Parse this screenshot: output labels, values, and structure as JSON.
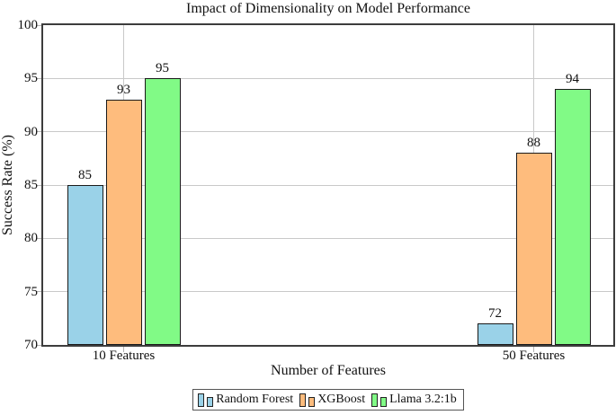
{
  "chart_data": {
    "type": "bar",
    "title": "Impact of Dimensionality on Model Performance",
    "xlabel": "Number of Features",
    "ylabel": "Success Rate (%)",
    "categories": [
      "10 Features",
      "50 Features"
    ],
    "series": [
      {
        "name": "Random Forest",
        "color": "#9AD2E8",
        "values": [
          85,
          72
        ]
      },
      {
        "name": "XGBoost",
        "color": "#FEBC7D",
        "values": [
          93,
          88
        ]
      },
      {
        "name": "Llama 3.2:1b",
        "color": "#81FA86",
        "values": [
          95,
          94
        ]
      }
    ],
    "ylim": [
      70,
      100
    ],
    "yticks": [
      70,
      75,
      80,
      85,
      90,
      95,
      100
    ],
    "grid": true,
    "legend_position": "bottom",
    "colors": {
      "grid": "#c9c9c9",
      "axis_frame": "#3d3d3d",
      "bar_edge": "#1a1a1a",
      "background": "#ffffff"
    }
  }
}
